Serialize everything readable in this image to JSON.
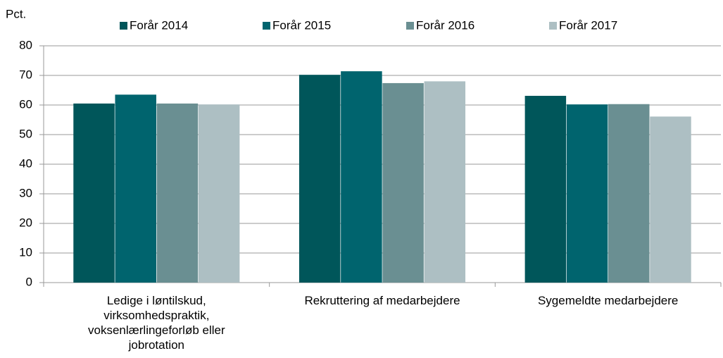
{
  "chart_data": {
    "type": "bar",
    "y_label": "Pct.",
    "categories": [
      "Ledige i løntilskud, virksomhedspraktik, voksenlærlingeforløb eller jobrotation",
      "Rekruttering af medarbejdere",
      "Sygemeldte medarbejdere"
    ],
    "series": [
      {
        "name": "Forår 2014",
        "color": "#00565a",
        "values": [
          60.5,
          70.2,
          63.1
        ]
      },
      {
        "name": "Forår 2015",
        "color": "#00646e",
        "values": [
          63.5,
          71.4,
          60.2
        ]
      },
      {
        "name": "Forår 2016",
        "color": "#6a8f92",
        "values": [
          60.5,
          67.4,
          60.3
        ]
      },
      {
        "name": "Forår 2017",
        "color": "#adbfc3",
        "values": [
          60.2,
          68.0,
          56.1
        ]
      }
    ],
    "ylim": [
      0,
      80
    ],
    "yticks": [
      0,
      10,
      20,
      30,
      40,
      50,
      60,
      70,
      80
    ],
    "grid": true,
    "legend": "top"
  }
}
